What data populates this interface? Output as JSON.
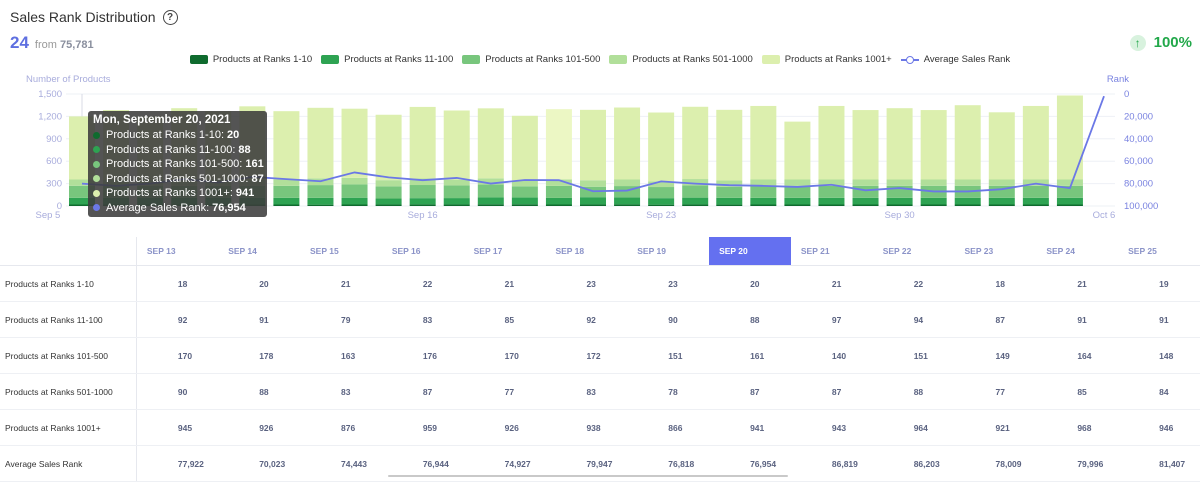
{
  "header": {
    "title": "Sales Rank Distribution",
    "count": "24",
    "from_label": "from",
    "from_value": "75,781",
    "change_pct": "100%",
    "change_icon": "arrow-up-icon"
  },
  "legend": [
    {
      "label": "Products at Ranks 1-10",
      "color": "#0f6b2e"
    },
    {
      "label": "Products at Ranks 11-100",
      "color": "#2ea352"
    },
    {
      "label": "Products at Ranks 101-500",
      "color": "#78c67d"
    },
    {
      "label": "Products at Ranks 501-1000",
      "color": "#b1df9a"
    },
    {
      "label": "Products at Ranks 1001+",
      "color": "#dcefae"
    },
    {
      "label": "Average Sales Rank",
      "color": "#6b78e6"
    }
  ],
  "chart_data": {
    "type": "bar",
    "stacked": true,
    "ylabel": "Number of Products",
    "y2label": "Rank",
    "ylim": [
      0,
      1500
    ],
    "y2lim": [
      0,
      100000
    ],
    "y2_inverted": true,
    "yticks": [
      "0",
      "300",
      "600",
      "900",
      "1,200",
      "1,500"
    ],
    "y2ticks": [
      "0",
      "20,000",
      "40,000",
      "60,000",
      "80,000",
      "100,000"
    ],
    "xticks": [
      "Sep 5",
      "Sep 16",
      "Sep 23",
      "Sep 30",
      "Oct 6"
    ],
    "categories": [
      "Sep 6",
      "Sep 7",
      "Sep 8",
      "Sep 9",
      "Sep 10",
      "Sep 11",
      "Sep 12",
      "Sep 13",
      "Sep 14",
      "Sep 15",
      "Sep 16",
      "Sep 17",
      "Sep 18",
      "Sep 19",
      "Sep 20",
      "Sep 21",
      "Sep 22",
      "Sep 23",
      "Sep 24",
      "Sep 25",
      "Sep 26",
      "Sep 27",
      "Sep 28",
      "Sep 29",
      "Sep 30",
      "Oct 1",
      "Oct 2",
      "Oct 3",
      "Oct 4",
      "Oct 5",
      "Oct 6"
    ],
    "highlight_index": 14,
    "series": [
      {
        "name": "Products at Ranks 1-10",
        "color": "#0f6b2e",
        "values": [
          20,
          20,
          20,
          20,
          20,
          20,
          20,
          18,
          20,
          21,
          22,
          21,
          23,
          23,
          20,
          21,
          22,
          18,
          21,
          19,
          20,
          20,
          20,
          20,
          20,
          20,
          20,
          20,
          20,
          20,
          0
        ]
      },
      {
        "name": "Products at Ranks 11-100",
        "color": "#2ea352",
        "values": [
          90,
          90,
          90,
          90,
          90,
          90,
          90,
          92,
          91,
          79,
          83,
          85,
          92,
          90,
          88,
          97,
          94,
          87,
          91,
          91,
          90,
          90,
          90,
          90,
          90,
          90,
          90,
          90,
          90,
          90,
          0
        ]
      },
      {
        "name": "Products at Ranks 101-500",
        "color": "#78c67d",
        "values": [
          160,
          160,
          160,
          160,
          160,
          160,
          160,
          170,
          178,
          163,
          176,
          170,
          172,
          151,
          161,
          140,
          151,
          149,
          164,
          148,
          160,
          160,
          160,
          160,
          160,
          160,
          160,
          160,
          160,
          160,
          0
        ]
      },
      {
        "name": "Products at Ranks 501-1000",
        "color": "#b1df9a",
        "values": [
          85,
          85,
          85,
          85,
          85,
          85,
          85,
          90,
          88,
          83,
          87,
          77,
          83,
          78,
          87,
          87,
          88,
          77,
          85,
          84,
          85,
          85,
          85,
          85,
          85,
          85,
          85,
          85,
          85,
          85,
          0
        ]
      },
      {
        "name": "Products at Ranks 1001+",
        "color": "#dcefae",
        "values": [
          845,
          930,
          845,
          955,
          915,
          980,
          915,
          945,
          926,
          876,
          959,
          926,
          938,
          866,
          941,
          943,
          964,
          921,
          968,
          946,
          985,
          775,
          985,
          930,
          955,
          930,
          995,
          900,
          985,
          1125,
          0
        ]
      },
      {
        "name": "Average Sales Rank",
        "color": "#6b78e6",
        "values": [
          80000,
          82000,
          80000,
          76000,
          79000,
          74000,
          76000,
          77922,
          70023,
          74443,
          76944,
          74927,
          79947,
          76818,
          76954,
          86819,
          86203,
          78009,
          79996,
          81407,
          82000,
          83000,
          81000,
          86000,
          84000,
          87000,
          87000,
          85000,
          80000,
          84000,
          2000
        ]
      }
    ]
  },
  "tooltip": {
    "title": "Mon, September 20, 2021",
    "rows": [
      {
        "label": "Products at Ranks 1-10:",
        "value": "20",
        "color": "#0f6b2e"
      },
      {
        "label": "Products at Ranks 11-100:",
        "value": "88",
        "color": "#2ea352"
      },
      {
        "label": "Products at Ranks 101-500:",
        "value": "161",
        "color": "#78c67d"
      },
      {
        "label": "Products at Ranks 501-1000:",
        "value": "87",
        "color": "#b1df9a"
      },
      {
        "label": "Products at Ranks 1001+:",
        "value": "941",
        "color": "#dcefae"
      },
      {
        "label": "Average Sales Rank:",
        "value": "76,954",
        "color": "#6b78e6"
      }
    ]
  },
  "table": {
    "columns": [
      "SEP 13",
      "SEP 14",
      "SEP 15",
      "SEP 16",
      "SEP 17",
      "SEP 18",
      "SEP 19",
      "SEP 20",
      "SEP 21",
      "SEP 22",
      "SEP 23",
      "SEP 24",
      "SEP 25"
    ],
    "selected_column": 7,
    "rows": [
      {
        "label": "Products at Ranks 1-10",
        "values": [
          "18",
          "20",
          "21",
          "22",
          "21",
          "23",
          "23",
          "20",
          "21",
          "22",
          "18",
          "21",
          "19"
        ]
      },
      {
        "label": "Products at Ranks 11-100",
        "values": [
          "92",
          "91",
          "79",
          "83",
          "85",
          "92",
          "90",
          "88",
          "97",
          "94",
          "87",
          "91",
          "91"
        ]
      },
      {
        "label": "Products at Ranks 101-500",
        "values": [
          "170",
          "178",
          "163",
          "176",
          "170",
          "172",
          "151",
          "161",
          "140",
          "151",
          "149",
          "164",
          "148"
        ]
      },
      {
        "label": "Products at Ranks 501-1000",
        "values": [
          "90",
          "88",
          "83",
          "87",
          "77",
          "83",
          "78",
          "87",
          "87",
          "88",
          "77",
          "85",
          "84"
        ]
      },
      {
        "label": "Products at Ranks 1001+",
        "values": [
          "945",
          "926",
          "876",
          "959",
          "926",
          "938",
          "866",
          "941",
          "943",
          "964",
          "921",
          "968",
          "946"
        ]
      },
      {
        "label": "Average Sales Rank",
        "values": [
          "77,922",
          "70,023",
          "74,443",
          "76,944",
          "74,927",
          "79,947",
          "76,818",
          "76,954",
          "86,819",
          "86,203",
          "78,009",
          "79,996",
          "81,407"
        ]
      }
    ]
  }
}
